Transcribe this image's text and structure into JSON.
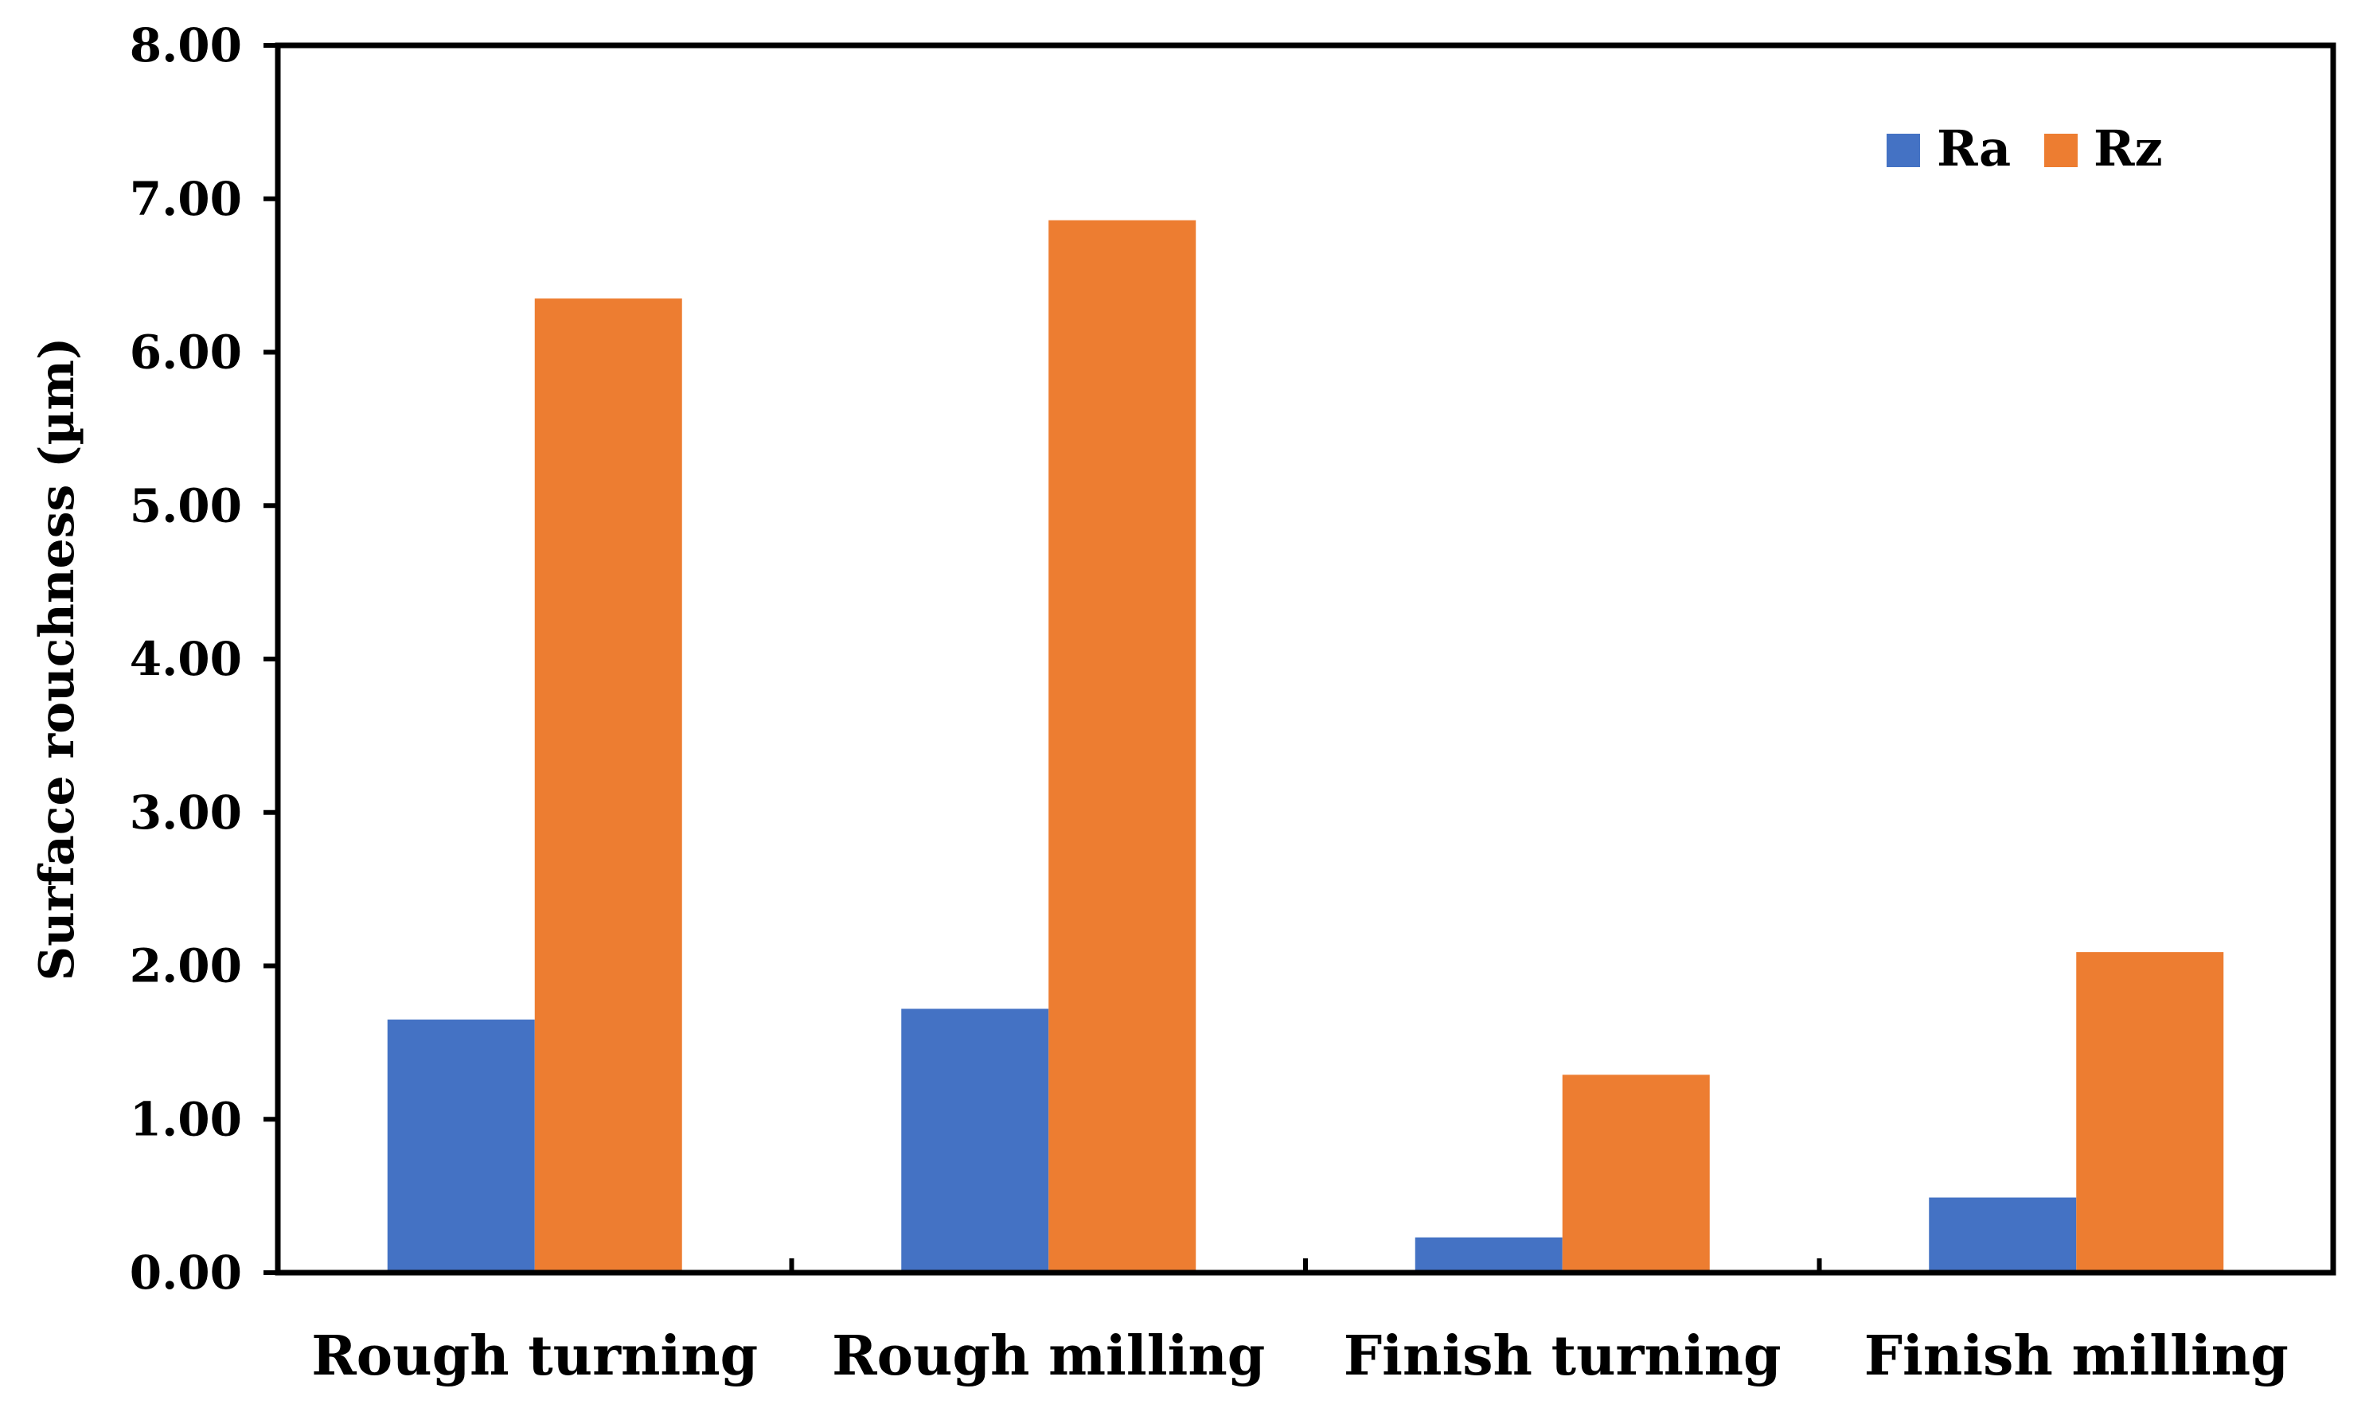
{
  "chart_data": {
    "type": "bar",
    "title": "",
    "xlabel": "",
    "ylabel": "Surface rouchness (µm)",
    "categories": [
      "Rough turning",
      "Rough milling",
      "Finish turning",
      "Finish milling"
    ],
    "series": [
      {
        "name": "Ra",
        "color": "#4472C4",
        "values": [
          1.65,
          1.72,
          0.23,
          0.49
        ]
      },
      {
        "name": "Rz",
        "color": "#ED7D31",
        "values": [
          6.35,
          6.86,
          1.29,
          2.09
        ]
      }
    ],
    "ylim": [
      0,
      8
    ],
    "yticks": [
      "0.00",
      "1.00",
      "2.00",
      "3.00",
      "4.00",
      "5.00",
      "6.00",
      "7.00",
      "8.00"
    ],
    "grid": false,
    "legend": "top-right"
  }
}
